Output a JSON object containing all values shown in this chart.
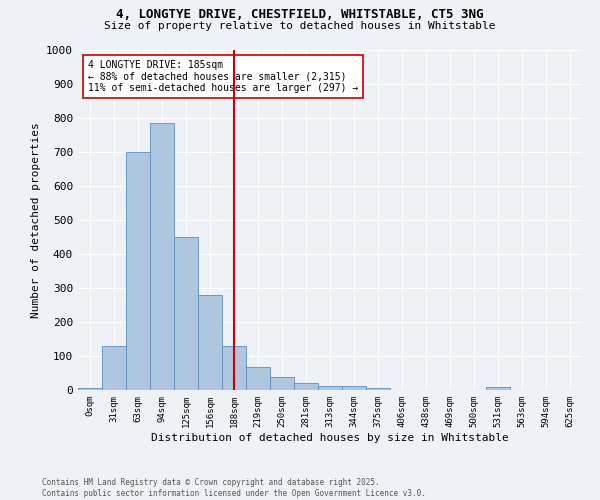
{
  "title1": "4, LONGTYE DRIVE, CHESTFIELD, WHITSTABLE, CT5 3NG",
  "title2": "Size of property relative to detached houses in Whitstable",
  "xlabel": "Distribution of detached houses by size in Whitstable",
  "ylabel": "Number of detached properties",
  "bin_labels": [
    "0sqm",
    "31sqm",
    "63sqm",
    "94sqm",
    "125sqm",
    "156sqm",
    "188sqm",
    "219sqm",
    "250sqm",
    "281sqm",
    "313sqm",
    "344sqm",
    "375sqm",
    "406sqm",
    "438sqm",
    "469sqm",
    "500sqm",
    "531sqm",
    "563sqm",
    "594sqm",
    "625sqm"
  ],
  "bar_values": [
    5,
    130,
    700,
    785,
    450,
    280,
    130,
    68,
    38,
    22,
    13,
    12,
    5,
    0,
    0,
    0,
    0,
    8,
    0,
    0,
    0
  ],
  "bar_color": "#aec6df",
  "bar_edge_color": "#5a8fbf",
  "property_line_bin_index": 6,
  "annotation_text": "4 LONGTYE DRIVE: 185sqm\n← 88% of detached houses are smaller (2,315)\n11% of semi-detached houses are larger (297) →",
  "annotation_box_color": "#ffffff",
  "annotation_box_edge": "#cc0000",
  "vline_color": "#cc0000",
  "ylim": [
    0,
    1000
  ],
  "yticks": [
    0,
    100,
    200,
    300,
    400,
    500,
    600,
    700,
    800,
    900,
    1000
  ],
  "background_color": "#eef2f7",
  "grid_color": "#ffffff",
  "footer_text": "Contains HM Land Registry data © Crown copyright and database right 2025.\nContains public sector information licensed under the Open Government Licence v3.0."
}
